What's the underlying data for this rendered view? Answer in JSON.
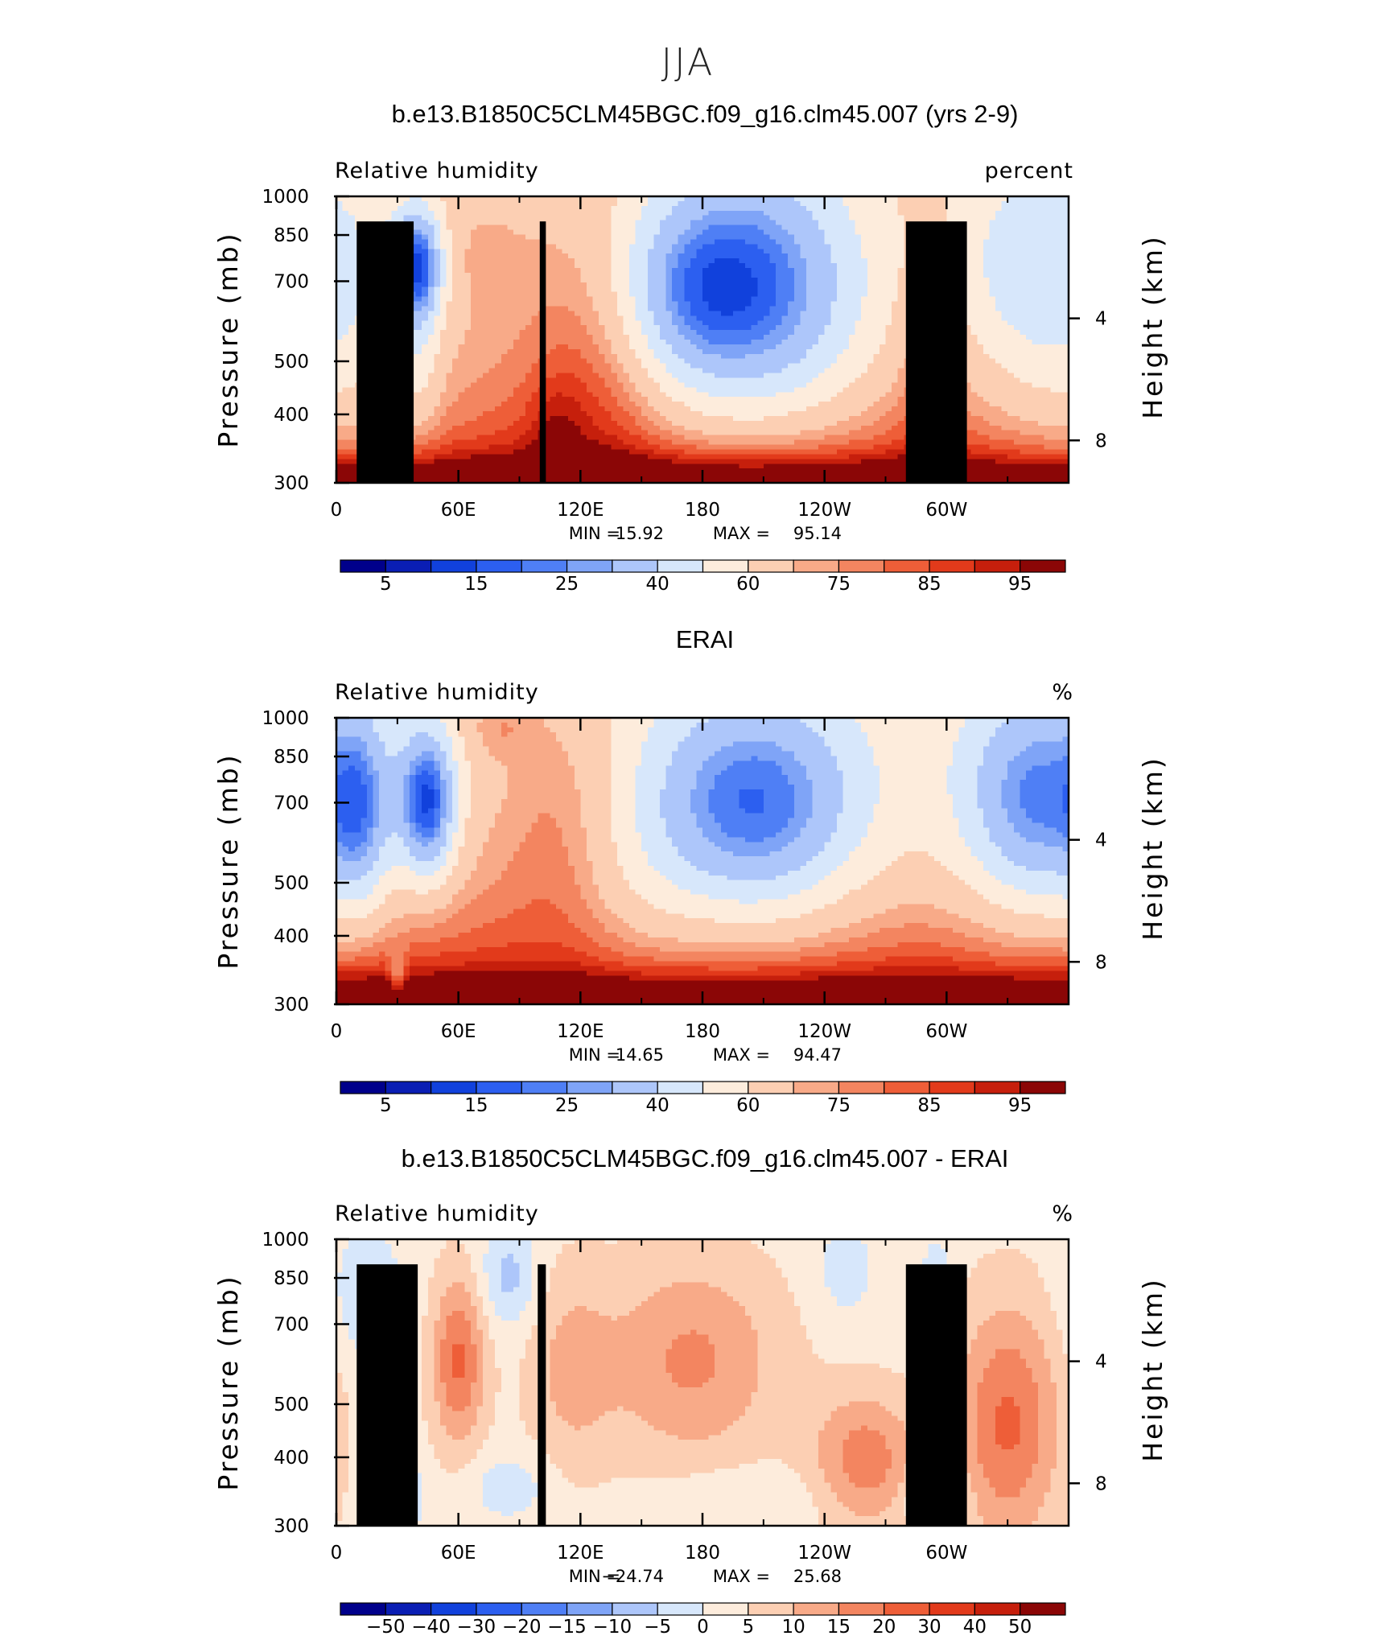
{
  "figure": {
    "season": "JJA"
  },
  "chart_data": [
    {
      "type": "heatmap",
      "title": "b.e13.B1850C5CLM45BGC.f09_g16.clm45.007 (yrs 2-9)",
      "variable": "Relative humidity",
      "units": "percent",
      "xlabel": "",
      "ylabel": "Pressure (mb)",
      "ylabel_right": "Height (km)",
      "x_ticks": [
        "0",
        "60E",
        "120E",
        "180",
        "120W",
        "60W"
      ],
      "y_ticks": [
        "300",
        "400",
        "500",
        "700",
        "850",
        "1000"
      ],
      "right_ticks": [
        "8",
        "4"
      ],
      "xlim": [
        0,
        360
      ],
      "ylim": [
        1000,
        300
      ],
      "y_scale": "log",
      "min_label": "MIN =",
      "min": "15.92",
      "max_label": "MAX =",
      "max": "95.14",
      "colorbar_labels": [
        "5",
        "15",
        "25",
        "40",
        "60",
        "75",
        "85",
        "95"
      ],
      "colorbar_colors": [
        "#00008b",
        "#0a1eb4",
        "#1141dc",
        "#2c5ff0",
        "#4f7ff5",
        "#7fa4f7",
        "#adc6fa",
        "#d7e7fb",
        "#fdecdc",
        "#fccfb3",
        "#f8aa88",
        "#f38560",
        "#ee5e38",
        "#e23a1b",
        "#c61f0c",
        "#8b0606"
      ],
      "levels": [
        5,
        10,
        15,
        20,
        25,
        30,
        40,
        50,
        60,
        70,
        75,
        80,
        85,
        90,
        95
      ],
      "terrain": [
        {
          "x0": 10,
          "x1": 38,
          "p": 900
        },
        {
          "x0": 28,
          "x1": 35,
          "p": 825
        },
        {
          "x0": 100,
          "x1": 103,
          "p": 900
        },
        {
          "x0": 280,
          "x1": 310,
          "p": 900
        }
      ],
      "features": {
        "base": 68,
        "ys": [
          18,
          10,
          -2
        ],
        "surf": 22,
        "blobs": [
          {
            "x": 40,
            "p": 400,
            "sx": 9,
            "sp": 0.17,
            "a": -48
          },
          {
            "x": 40,
            "p": 600,
            "sx": 8,
            "sp": 0.25,
            "a": -12
          },
          {
            "x": 202,
            "p": 400,
            "sx": 40,
            "sp": 0.35,
            "a": -40
          },
          {
            "x": 205,
            "p": 600,
            "sx": 45,
            "sp": 0.3,
            "a": -18
          },
          {
            "x": 345,
            "p": 400,
            "sx": 30,
            "sp": 0.35,
            "a": -24
          },
          {
            "x": 125,
            "p": 600,
            "sx": 24,
            "sp": 0.45,
            "a": 14
          },
          {
            "x": 108,
            "p": 800,
            "sx": 9,
            "sp": 0.15,
            "a": 8
          },
          {
            "x": 5,
            "p": 700,
            "sx": 30,
            "sp": 0.35,
            "a": -10
          },
          {
            "x": 170,
            "p": 450,
            "sx": 25,
            "sp": 0.25,
            "a": -14
          },
          {
            "x": 290,
            "p": 600,
            "sx": 12,
            "sp": 0.4,
            "a": 8
          },
          {
            "x": 70,
            "p": 380,
            "sx": 15,
            "sp": 0.15,
            "a": 5
          }
        ]
      }
    },
    {
      "type": "heatmap",
      "title": "ERAI",
      "variable": "Relative humidity",
      "units": "%",
      "xlabel": "",
      "ylabel": "Pressure (mb)",
      "ylabel_right": "Height (km)",
      "x_ticks": [
        "0",
        "60E",
        "120E",
        "180",
        "120W",
        "60W"
      ],
      "y_ticks": [
        "300",
        "400",
        "500",
        "700",
        "850",
        "1000"
      ],
      "right_ticks": [
        "8",
        "4"
      ],
      "xlim": [
        0,
        360
      ],
      "ylim": [
        1000,
        300
      ],
      "y_scale": "log",
      "min_label": "MIN =",
      "min": "14.65",
      "max_label": "MAX =",
      "max": "94.47",
      "colorbar_labels": [
        "5",
        "15",
        "25",
        "40",
        "60",
        "75",
        "85",
        "95"
      ],
      "colorbar_colors": [
        "#00008b",
        "#0a1eb4",
        "#1141dc",
        "#2c5ff0",
        "#4f7ff5",
        "#7fa4f7",
        "#adc6fa",
        "#d7e7fb",
        "#fdecdc",
        "#fccfb3",
        "#f8aa88",
        "#f38560",
        "#ee5e38",
        "#e23a1b",
        "#c61f0c",
        "#8b0606"
      ],
      "levels": [
        5,
        10,
        15,
        20,
        25,
        30,
        40,
        50,
        60,
        70,
        75,
        80,
        85,
        90,
        95
      ],
      "terrain": [],
      "features": {
        "base": 62,
        "ys": [
          24,
          14,
          0
        ],
        "surf": 22,
        "blobs": [
          {
            "x": 45,
            "p": 430,
            "sx": 10,
            "sp": 0.22,
            "a": -48
          },
          {
            "x": 12,
            "p": 450,
            "sx": 10,
            "sp": 0.3,
            "a": -22
          },
          {
            "x": 205,
            "p": 440,
            "sx": 40,
            "sp": 0.35,
            "a": -46
          },
          {
            "x": 345,
            "p": 430,
            "sx": 28,
            "sp": 0.35,
            "a": -42
          },
          {
            "x": 110,
            "p": 450,
            "sx": 22,
            "sp": 0.4,
            "a": 12
          },
          {
            "x": 80,
            "p": 310,
            "sx": 12,
            "sp": 0.1,
            "a": 10
          },
          {
            "x": 30,
            "p": 900,
            "sx": 3,
            "sp": 0.08,
            "a": -18
          },
          {
            "x": 145,
            "p": 650,
            "sx": 25,
            "sp": 0.3,
            "a": -6
          }
        ]
      }
    },
    {
      "type": "heatmap",
      "title": "b.e13.B1850C5CLM45BGC.f09_g16.clm45.007 - ERAI",
      "variable": "Relative humidity",
      "units": "%",
      "xlabel": "",
      "ylabel": "Pressure (mb)",
      "ylabel_right": "Height (km)",
      "x_ticks": [
        "0",
        "60E",
        "120E",
        "180",
        "120W",
        "60W"
      ],
      "y_ticks": [
        "300",
        "400",
        "500",
        "700",
        "850",
        "1000"
      ],
      "right_ticks": [
        "8",
        "4"
      ],
      "xlim": [
        0,
        360
      ],
      "ylim": [
        1000,
        300
      ],
      "y_scale": "log",
      "min_label": "MIN =",
      "min": "−24.74",
      "max_label": "MAX =",
      "max": "25.68",
      "colorbar_labels": [
        "−50",
        "−40",
        "−30",
        "−20",
        "−15",
        "−10",
        "−5",
        "0",
        "5",
        "10",
        "15",
        "20",
        "30",
        "40",
        "50"
      ],
      "colorbar_colors": [
        "#00008b",
        "#0a1eb4",
        "#1141dc",
        "#2c5ff0",
        "#4f7ff5",
        "#7fa4f7",
        "#adc6fa",
        "#d7e7fb",
        "#fdecdc",
        "#fccfb3",
        "#f8aa88",
        "#f38560",
        "#ee5e38",
        "#e23a1b",
        "#c61f0c",
        "#8b0606"
      ],
      "levels": [
        -50,
        -40,
        -30,
        -20,
        -15,
        -10,
        -5,
        0,
        5,
        10,
        15,
        20,
        30,
        40,
        50
      ],
      "terrain": [
        {
          "x0": 10,
          "x1": 40,
          "p": 900
        },
        {
          "x0": 28,
          "x1": 36,
          "p": 825
        },
        {
          "x0": 99,
          "x1": 103,
          "p": 900
        },
        {
          "x0": 280,
          "x1": 310,
          "p": 900
        }
      ],
      "features": {
        "base": 3,
        "ys": [
          0,
          0,
          0
        ],
        "surf": 0,
        "blobs": [
          {
            "x": 60,
            "p": 500,
            "sx": 9,
            "sp": 0.25,
            "a": 18
          },
          {
            "x": 175,
            "p": 500,
            "sx": 30,
            "sp": 0.3,
            "a": 13
          },
          {
            "x": 260,
            "p": 760,
            "sx": 18,
            "sp": 0.2,
            "a": 15
          },
          {
            "x": 330,
            "p": 650,
            "sx": 18,
            "sp": 0.35,
            "a": 18
          },
          {
            "x": 115,
            "p": 520,
            "sx": 15,
            "sp": 0.3,
            "a": 8
          },
          {
            "x": 30,
            "p": 880,
            "sx": 7,
            "sp": 0.08,
            "a": -20
          },
          {
            "x": 295,
            "p": 880,
            "sx": 8,
            "sp": 0.08,
            "a": -20
          },
          {
            "x": 85,
            "p": 350,
            "sx": 10,
            "sp": 0.15,
            "a": -10
          },
          {
            "x": 15,
            "p": 380,
            "sx": 12,
            "sp": 0.2,
            "a": -8
          },
          {
            "x": 295,
            "p": 380,
            "sx": 5,
            "sp": 0.15,
            "a": -10
          },
          {
            "x": 250,
            "p": 340,
            "sx": 10,
            "sp": 0.15,
            "a": -6
          },
          {
            "x": 85,
            "p": 850,
            "sx": 15,
            "sp": 0.1,
            "a": -6
          },
          {
            "x": 200,
            "p": 900,
            "sx": 30,
            "sp": 0.1,
            "a": -4
          }
        ]
      }
    }
  ]
}
